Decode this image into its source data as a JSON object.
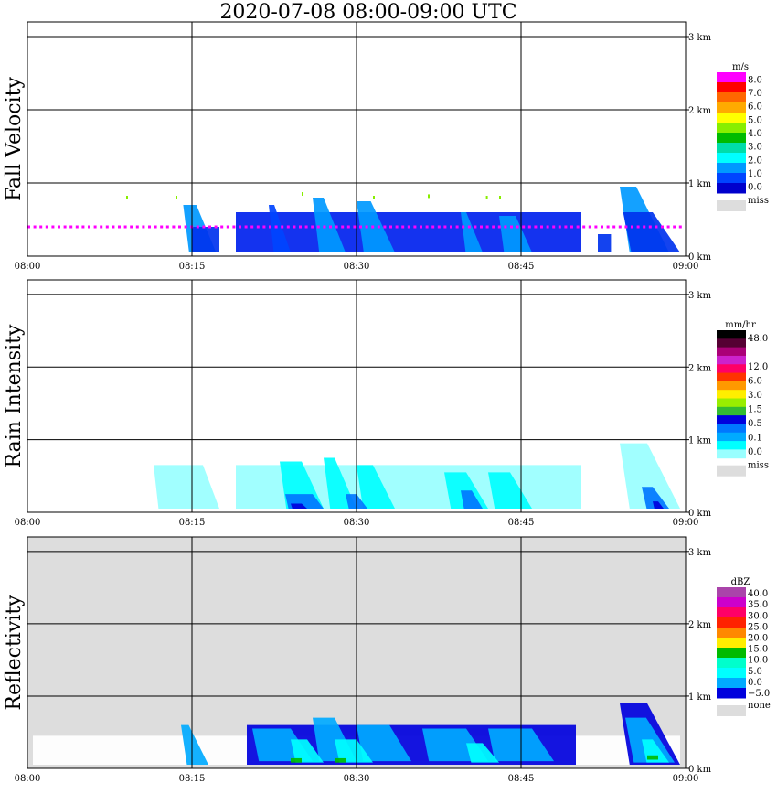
{
  "title": "2020-07-08   08:00-09:00 UTC",
  "colors": {
    "frame": "#000000",
    "missing": "#dddddd"
  },
  "chart_data": [
    {
      "type": "heatmap",
      "ylabel": "Fall Velocity",
      "x_ticks": [
        "08:00",
        "08:15",
        "08:30",
        "08:45",
        "09:00"
      ],
      "y_ticks": [
        "3 km",
        "2 km",
        "1 km",
        "0 km"
      ],
      "ylim_km": [
        0,
        3.2
      ],
      "xlim_min": [
        0,
        60
      ],
      "background": "white",
      "colorbar": {
        "unit": "m/s",
        "labels": [
          "8.0",
          "7.0",
          "6.0",
          "5.0",
          "4.0",
          "3.0",
          "2.0",
          "1.0",
          "0.0"
        ],
        "colors": [
          "#ff00ff",
          "#ff0000",
          "#ff6600",
          "#ffaa00",
          "#ffff00",
          "#88ee00",
          "#00bb00",
          "#00ddaa",
          "#00ffff",
          "#0099ff",
          "#0044ff",
          "#0000cc"
        ],
        "missing_label": "miss"
      },
      "regions": [
        {
          "t0": 14.2,
          "t1": 17.2,
          "h0": 0.05,
          "h1": 0.7,
          "c": "#0099ff",
          "tilt": 1.8
        },
        {
          "t0": 15.0,
          "t1": 17.5,
          "h0": 0.05,
          "h1": 0.4,
          "c": "#0033ee",
          "tilt": 0
        },
        {
          "t0": 19.0,
          "t1": 50.5,
          "h0": 0.05,
          "h1": 0.6,
          "c": "#0022ee",
          "tilt": 0
        },
        {
          "t0": 22.0,
          "t1": 24.0,
          "h0": 0.05,
          "h1": 0.7,
          "c": "#0044ff",
          "tilt": 1.5
        },
        {
          "t0": 26.0,
          "t1": 29.0,
          "h0": 0.05,
          "h1": 0.8,
          "c": "#0099ff",
          "tilt": 2.0
        },
        {
          "t0": 30.0,
          "t1": 33.5,
          "h0": 0.05,
          "h1": 0.75,
          "c": "#0099ff",
          "tilt": 2.2
        },
        {
          "t0": 39.5,
          "t1": 41.5,
          "h0": 0.05,
          "h1": 0.6,
          "c": "#0099ff",
          "tilt": 1.5
        },
        {
          "t0": 43.0,
          "t1": 46.0,
          "h0": 0.05,
          "h1": 0.55,
          "c": "#0099ff",
          "tilt": 1.5
        },
        {
          "t0": 52.0,
          "t1": 53.2,
          "h0": 0.05,
          "h1": 0.3,
          "c": "#0033ee",
          "tilt": 0
        },
        {
          "t0": 54.0,
          "t1": 58.5,
          "h0": 0.05,
          "h1": 0.95,
          "c": "#0099ff",
          "tilt": 3.0
        },
        {
          "t0": 54.3,
          "t1": 59.5,
          "h0": 0.05,
          "h1": 0.6,
          "c": "#0033ee",
          "tilt": 2.5
        }
      ],
      "line": {
        "t0": 0,
        "t1": 59.5,
        "h": 0.4,
        "c": "#ff00ff"
      },
      "dots": [
        [
          9,
          0.8,
          "#88ee00"
        ],
        [
          13.5,
          0.8,
          "#88ee00"
        ],
        [
          25.0,
          0.85,
          "#88ee00"
        ],
        [
          31.5,
          0.8,
          "#88ee00"
        ],
        [
          36.5,
          0.82,
          "#88ee00"
        ],
        [
          41.8,
          0.8,
          "#88ee00"
        ],
        [
          43.0,
          0.8,
          "#88ee00"
        ]
      ]
    },
    {
      "type": "heatmap",
      "ylabel": "Rain Intensity",
      "x_ticks": [
        "08:00",
        "08:15",
        "08:30",
        "08:45",
        "09:00"
      ],
      "y_ticks": [
        "3 km",
        "2 km",
        "1 km",
        "0 km"
      ],
      "ylim_km": [
        0,
        3.2
      ],
      "xlim_min": [
        0,
        60
      ],
      "background": "white",
      "colorbar": {
        "unit": "mm/hr",
        "labels": [
          "48.0",
          "",
          "12.0",
          "6.0",
          "3.0",
          "1.5",
          "0.5",
          "0.1",
          "0.0"
        ],
        "colors": [
          "#000000",
          "#550033",
          "#aa0077",
          "#cc22cc",
          "#ff0066",
          "#ff3300",
          "#ff9900",
          "#ffee00",
          "#99ee00",
          "#33bb33",
          "#0000dd",
          "#0077ff",
          "#00aaff",
          "#00ffff",
          "#99ffff"
        ],
        "missing_label": "miss"
      },
      "regions": [
        {
          "t0": 11.5,
          "t1": 17.5,
          "h0": 0.05,
          "h1": 0.65,
          "c": "#99ffff",
          "tilt": 1.5
        },
        {
          "t0": 19.0,
          "t1": 50.5,
          "h0": 0.05,
          "h1": 0.65,
          "c": "#99ffff",
          "tilt": 0
        },
        {
          "t0": 23.0,
          "t1": 27.0,
          "h0": 0.05,
          "h1": 0.7,
          "c": "#00ffff",
          "tilt": 2.0
        },
        {
          "t0": 27.0,
          "t1": 30.0,
          "h0": 0.05,
          "h1": 0.75,
          "c": "#00ffff",
          "tilt": 2.0
        },
        {
          "t0": 30.0,
          "t1": 33.5,
          "h0": 0.05,
          "h1": 0.65,
          "c": "#00ffff",
          "tilt": 2.0
        },
        {
          "t0": 38.0,
          "t1": 42.0,
          "h0": 0.05,
          "h1": 0.55,
          "c": "#00ffff",
          "tilt": 2.0
        },
        {
          "t0": 42.0,
          "t1": 46.0,
          "h0": 0.05,
          "h1": 0.55,
          "c": "#00ffff",
          "tilt": 2.0
        },
        {
          "t0": 54.0,
          "t1": 59.5,
          "h0": 0.05,
          "h1": 0.95,
          "c": "#99ffff",
          "tilt": 3.0
        },
        {
          "t0": 23.5,
          "t1": 27.0,
          "h0": 0.05,
          "h1": 0.25,
          "c": "#0077ff",
          "tilt": 1.0
        },
        {
          "t0": 29.0,
          "t1": 31.0,
          "h0": 0.05,
          "h1": 0.25,
          "c": "#0077ff",
          "tilt": 1.0
        },
        {
          "t0": 39.5,
          "t1": 41.5,
          "h0": 0.05,
          "h1": 0.3,
          "c": "#0077ff",
          "tilt": 1.0
        },
        {
          "t0": 56.0,
          "t1": 58.5,
          "h0": 0.05,
          "h1": 0.35,
          "c": "#0077ff",
          "tilt": 1.5
        },
        {
          "t0": 24.0,
          "t1": 25.5,
          "h0": 0.05,
          "h1": 0.12,
          "c": "#0000dd",
          "tilt": 0.5
        },
        {
          "t0": 57.0,
          "t1": 58.0,
          "h0": 0.05,
          "h1": 0.15,
          "c": "#0000dd",
          "tilt": 0.5
        }
      ]
    },
    {
      "type": "heatmap",
      "ylabel": "Reflectivity",
      "x_ticks": [
        "08:00",
        "08:15",
        "08:30",
        "08:45",
        "09:00"
      ],
      "y_ticks": [
        "3 km",
        "2 km",
        "1 km",
        "0 km"
      ],
      "ylim_km": [
        0,
        3.2
      ],
      "xlim_min": [
        0,
        60
      ],
      "background": "#dddddd",
      "colorbar": {
        "unit": "dBZ",
        "labels": [
          "40.0",
          "35.0",
          "30.0",
          "25.0",
          "20.0",
          "15.0",
          "10.0",
          "5.0",
          "0.0",
          "−5.0"
        ],
        "colors": [
          "#aa44aa",
          "#cc00cc",
          "#ff0066",
          "#ff2200",
          "#ff8800",
          "#ffee00",
          "#00bb00",
          "#00ffcc",
          "#00ffff",
          "#00aaff",
          "#0000dd"
        ],
        "missing_label": "none"
      },
      "regions": [
        {
          "t0": 0.5,
          "t1": 59.5,
          "h0": 0.05,
          "h1": 0.45,
          "c": "#ffffff",
          "tilt": 0
        },
        {
          "t0": 14.0,
          "t1": 16.5,
          "h0": 0.05,
          "h1": 0.6,
          "c": "#00aaff",
          "tilt": 1.8
        },
        {
          "t0": 20.0,
          "t1": 50.0,
          "h0": 0.05,
          "h1": 0.6,
          "c": "#0000dd",
          "tilt": 0
        },
        {
          "t0": 20.5,
          "t1": 26.0,
          "h0": 0.1,
          "h1": 0.55,
          "c": "#00aaff",
          "tilt": 2.0
        },
        {
          "t0": 26.0,
          "t1": 30.0,
          "h0": 0.1,
          "h1": 0.7,
          "c": "#00aaff",
          "tilt": 2.0
        },
        {
          "t0": 30.0,
          "t1": 35.0,
          "h0": 0.1,
          "h1": 0.6,
          "c": "#00aaff",
          "tilt": 2.0
        },
        {
          "t0": 36.0,
          "t1": 42.0,
          "h0": 0.1,
          "h1": 0.55,
          "c": "#00aaff",
          "tilt": 2.0
        },
        {
          "t0": 42.0,
          "t1": 48.0,
          "h0": 0.1,
          "h1": 0.55,
          "c": "#00aaff",
          "tilt": 2.0
        },
        {
          "t0": 24.0,
          "t1": 27.0,
          "h0": 0.08,
          "h1": 0.4,
          "c": "#00ffff",
          "tilt": 1.5
        },
        {
          "t0": 28.0,
          "t1": 31.5,
          "h0": 0.08,
          "h1": 0.4,
          "c": "#00ffff",
          "tilt": 1.5
        },
        {
          "t0": 40.0,
          "t1": 43.0,
          "h0": 0.08,
          "h1": 0.35,
          "c": "#00ffff",
          "tilt": 1.5
        },
        {
          "t0": 54.0,
          "t1": 59.5,
          "h0": 0.05,
          "h1": 0.9,
          "c": "#0000dd",
          "tilt": 3.0
        },
        {
          "t0": 54.5,
          "t1": 59.0,
          "h0": 0.08,
          "h1": 0.7,
          "c": "#00aaff",
          "tilt": 2.6
        },
        {
          "t0": 56.0,
          "t1": 58.5,
          "h0": 0.08,
          "h1": 0.4,
          "c": "#00ffff",
          "tilt": 1.5
        },
        {
          "t0": 24.0,
          "t1": 25.0,
          "h0": 0.08,
          "h1": 0.14,
          "c": "#00bb00",
          "tilt": 0
        },
        {
          "t0": 28.0,
          "t1": 29.0,
          "h0": 0.08,
          "h1": 0.14,
          "c": "#00bb00",
          "tilt": 0
        },
        {
          "t0": 56.5,
          "t1": 57.5,
          "h0": 0.12,
          "h1": 0.18,
          "c": "#00bb00",
          "tilt": 0
        }
      ]
    }
  ]
}
